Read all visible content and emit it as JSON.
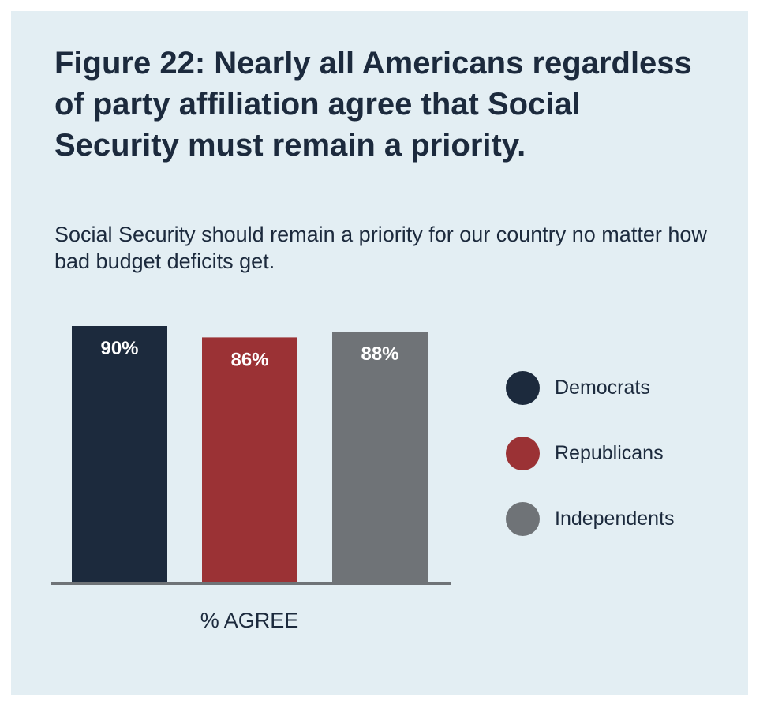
{
  "title": "Figure 22: Nearly all Americans regardless of party affiliation agree that Social Security must remain a priority.",
  "subtitle": "Social Security should remain a priority for our country no matter how bad budget deficits get.",
  "colors": {
    "background": "#e3eef3",
    "text": "#1c2a3d",
    "axis": "#6f7377",
    "bar_label": "#ffffff"
  },
  "chart_data": {
    "type": "bar",
    "categories": [
      "% AGREE"
    ],
    "xlabel": "% AGREE",
    "ylabel": "",
    "ylim": [
      0,
      90
    ],
    "grid": false,
    "legend_position": "right",
    "series": [
      {
        "name": "Democrats",
        "values": [
          90
        ],
        "label": "90%",
        "color": "#1c2a3d"
      },
      {
        "name": "Republicans",
        "values": [
          86
        ],
        "label": "86%",
        "color": "#9b3235"
      },
      {
        "name": "Independents",
        "values": [
          88
        ],
        "label": "88%",
        "color": "#6f7377"
      }
    ]
  }
}
